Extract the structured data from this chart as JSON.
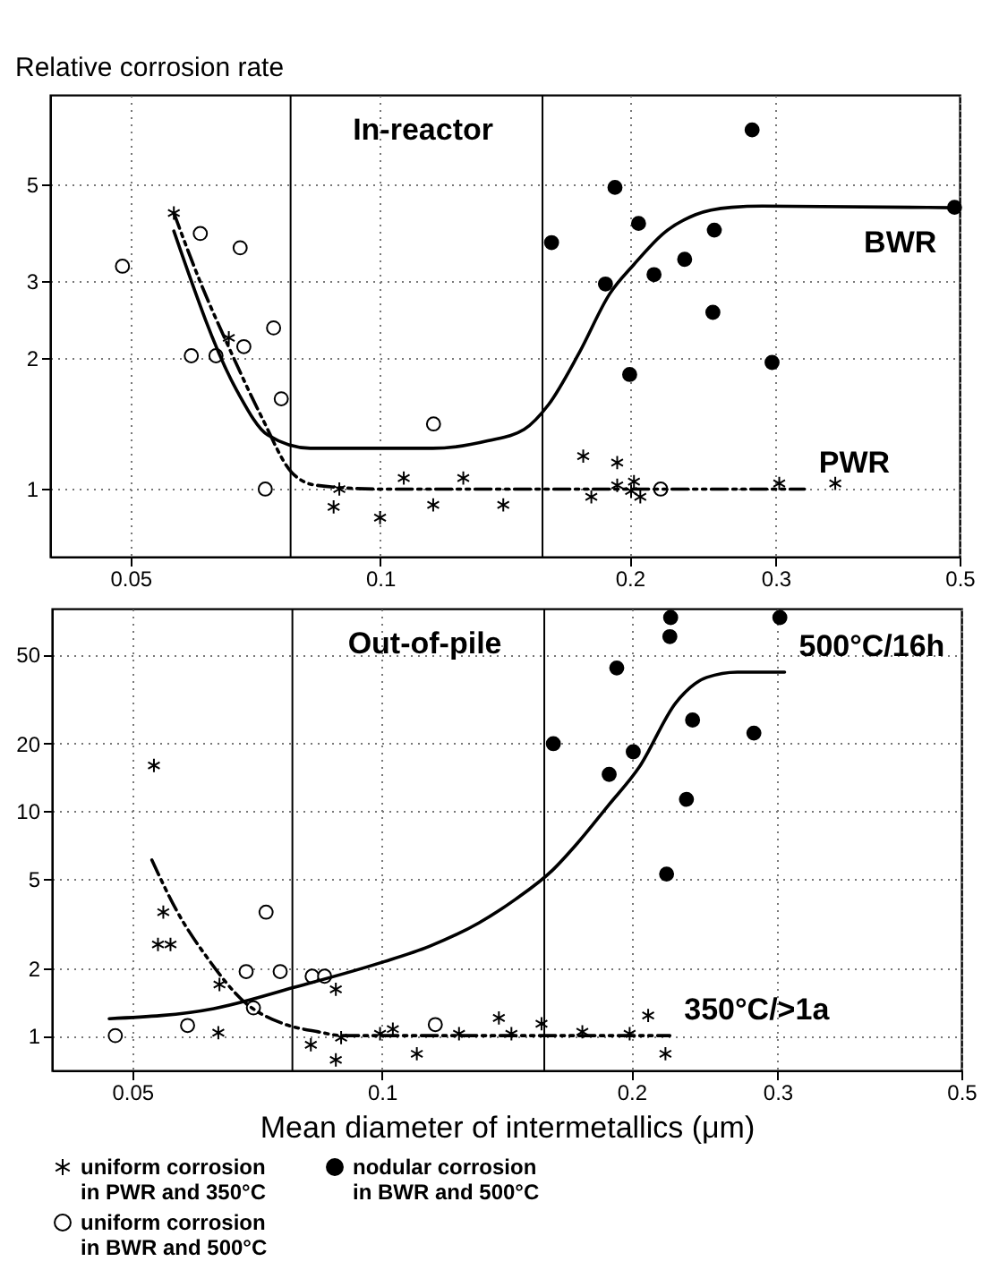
{
  "chart_data": [
    {
      "type": "scatter",
      "ylabel": "Relative corrosion rate",
      "annotations": [
        "In-reactor"
      ],
      "log": "xy",
      "xlim": [
        0.04,
        0.5
      ],
      "xticks": [
        0.05,
        0.1,
        0.2,
        0.3,
        0.5
      ],
      "ylim": [
        0.7,
        8
      ],
      "yticks": [
        1,
        2,
        3,
        5
      ],
      "grid": true,
      "ref_lines": [
        {
          "axis": "x",
          "value": 0.078,
          "color": "#000000"
        },
        {
          "axis": "x",
          "value": 0.157,
          "color": "#000000"
        }
      ],
      "series": [
        {
          "type": "scatter",
          "marker": "cross",
          "color": "#000000",
          "x": [
            0.0564,
            0.0657,
            0.0879,
            0.0893,
            0.1,
            0.1068,
            0.1159,
            0.126,
            0.1408,
            0.1758,
            0.1798,
            0.1932,
            0.1932,
            0.2024,
            0.2008,
            0.206,
            0.303,
            0.354
          ],
          "values": [
            4.29,
            2.22,
            0.91,
            1.0,
            0.86,
            1.06,
            0.92,
            1.06,
            0.92,
            1.19,
            0.96,
            1.15,
            1.02,
            1.04,
            0.99,
            0.96,
            1.03,
            1.03
          ]
        },
        {
          "type": "scatter",
          "marker": "circle",
          "color": "#000000",
          "x": [
            0.161,
            0.192,
            0.205,
            0.187,
            0.2,
            0.214,
            0.233,
            0.253,
            0.252,
            0.281,
            0.297,
            0.493
          ],
          "values": [
            3.67,
            4.91,
            4.06,
            2.95,
            1.83,
            3.1,
            3.36,
            3.92,
            2.54,
            6.65,
            1.95,
            4.42
          ]
        },
        {
          "type": "scatter",
          "marker": "circle",
          "color": "#ffffff",
          "x": [
            0.0489,
            0.0607,
            0.0678,
            0.0592,
            0.0634,
            0.0685,
            0.0744,
            0.076,
            0.0727,
            0.116,
            0.218
          ],
          "values": [
            3.24,
            3.85,
            3.57,
            2.02,
            2.02,
            2.12,
            2.34,
            1.61,
            1.0,
            1.41,
            1.0
          ]
        },
        {
          "type": "line",
          "name": "BWR",
          "color": "#000000",
          "line_style": "solid",
          "x": [
            0.0564,
            0.0672,
            0.0732,
            0.0824,
            0.1157,
            0.1348,
            0.1492,
            0.1596,
            0.1738,
            0.1892,
            0.2024,
            0.2203,
            0.2399,
            0.2655,
            0.289,
            0.493
          ],
          "values": [
            3.9,
            1.68,
            1.33,
            1.24,
            1.24,
            1.29,
            1.37,
            1.56,
            2.05,
            2.8,
            3.27,
            3.87,
            4.25,
            4.42,
            4.45,
            4.41
          ]
        },
        {
          "type": "line",
          "name": "PWR",
          "color": "#000000",
          "line_style": "dashed",
          "x": [
            0.0564,
            0.0607,
            0.0661,
            0.072,
            0.0783,
            0.0838,
            0.1,
            0.325
          ],
          "values": [
            4.29,
            2.98,
            2.06,
            1.46,
            1.09,
            1.02,
            1.0,
            1.0
          ]
        }
      ]
    },
    {
      "type": "scatter",
      "xlabel": "Mean diameter of intermetallics (μm)",
      "annotations": [
        "Out-of-pile"
      ],
      "log": "xy",
      "xlim": [
        0.04,
        0.5
      ],
      "xticks": [
        0.05,
        0.1,
        0.2,
        0.3,
        0.5
      ],
      "ylim": [
        0.7,
        80
      ],
      "yticks": [
        1,
        2,
        5,
        10,
        20,
        50
      ],
      "grid": true,
      "legend": "bottom",
      "ref_lines": [
        {
          "axis": "x",
          "value": 0.078,
          "color": "#000000"
        },
        {
          "axis": "x",
          "value": 0.157,
          "color": "#000000"
        }
      ],
      "series": [
        {
          "type": "scatter",
          "name": "uniform corrosion in PWR and 350°C",
          "marker": "cross",
          "color": "#000000",
          "x": [
            0.0531,
            0.0545,
            0.0537,
            0.0556,
            0.0637,
            0.0635,
            0.0821,
            0.088,
            0.088,
            0.0893,
            0.0995,
            0.1031,
            0.1102,
            0.1239,
            0.1384,
            0.1433,
            0.1558,
            0.1745,
            0.199,
            0.2095,
            0.2198
          ],
          "values": [
            16,
            3.55,
            2.55,
            2.55,
            1.69,
            1.03,
            0.91,
            1.61,
            0.78,
            0.98,
            1.02,
            1.07,
            0.83,
            1.02,
            1.2,
            1.02,
            1.13,
            1.04,
            1.02,
            1.23,
            0.83
          ]
        },
        {
          "type": "scatter",
          "name": "nodular corrosion in BWR and 500°C",
          "marker": "circle",
          "color": "#000000",
          "x": [
            0.161,
            0.223,
            0.2225,
            0.192,
            0.201,
            0.188,
            0.237,
            0.233,
            0.2205,
            0.281,
            0.302
          ],
          "values": [
            20,
            73,
            60,
            43.5,
            18.4,
            14.6,
            25.5,
            11.3,
            5.25,
            22.3,
            73
          ]
        },
        {
          "type": "scatter",
          "name": "uniform corrosion in BWR and 500°C",
          "marker": "circle",
          "color": "#ffffff",
          "x": [
            0.0477,
            0.0583,
            0.07,
            0.0686,
            0.0725,
            0.0754,
            0.0824,
            0.0853,
            0.116
          ],
          "values": [
            1.0,
            1.11,
            1.33,
            1.93,
            3.55,
            1.93,
            1.84,
            1.84,
            1.12
          ]
        },
        {
          "type": "line",
          "name": "500°C/16h",
          "color": "#000000",
          "line_style": "solid",
          "x": [
            0.0469,
            0.0627,
            0.0783,
            0.0995,
            0.1141,
            0.1309,
            0.1449,
            0.1607,
            0.172,
            0.1875,
            0.2043,
            0.2263,
            0.2465,
            0.2685,
            0.306
          ],
          "values": [
            1.19,
            1.32,
            1.64,
            2.11,
            2.5,
            3.18,
            4.05,
            5.47,
            7.18,
            10.6,
            15.7,
            30.5,
            39.5,
            41.7,
            41.7
          ]
        },
        {
          "type": "line",
          "name": "350°C/>1a",
          "color": "#000000",
          "line_style": "dashed",
          "x": [
            0.0528,
            0.0566,
            0.0616,
            0.0683,
            0.0756,
            0.0838,
            0.0898,
            0.2225
          ],
          "values": [
            6.06,
            3.59,
            2.22,
            1.41,
            1.14,
            1.04,
            1.0,
            1.0
          ]
        }
      ]
    }
  ]
}
